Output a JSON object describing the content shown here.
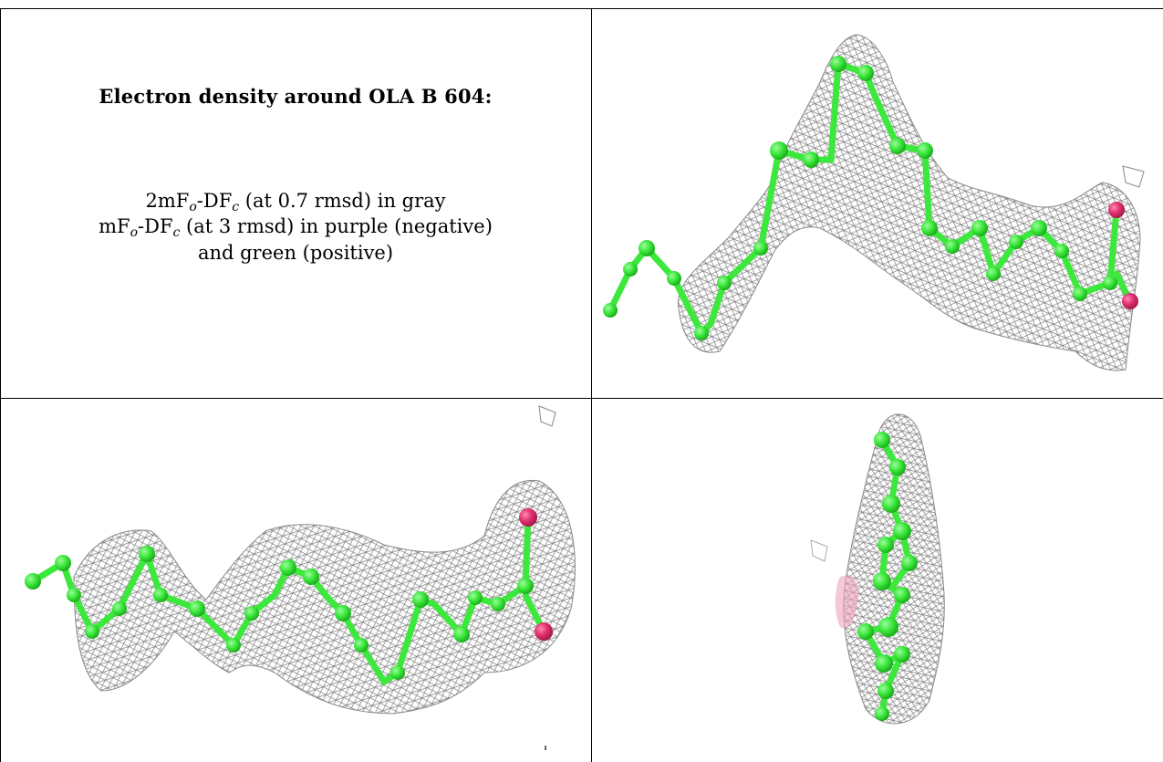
{
  "caption": {
    "title": "Electron density around OLA B 604:",
    "line1": {
      "prefix": "2mF",
      "sub1": "o",
      "mid": "-DF",
      "sub2": "c",
      "suffix": " (at 0.7 rmsd) in gray"
    },
    "line2": {
      "prefix": "mF",
      "sub1": "o",
      "mid": "-DF",
      "sub2": "c",
      "suffix": " (at 3 rmsd) in purple (negative)"
    },
    "line3": "and green (positive)"
  },
  "panels": [
    {
      "name": "view-top-right",
      "description_shown": false
    },
    {
      "name": "view-bottom-left",
      "description_shown": false
    },
    {
      "name": "view-bottom-right",
      "description_shown": false
    }
  ],
  "colors": {
    "carbon": "#3de83d",
    "carbon_dark": "#1fbf1f",
    "oxygen": "#e0306e",
    "mesh": "#7a7a7a",
    "grid_line": "#000000"
  }
}
